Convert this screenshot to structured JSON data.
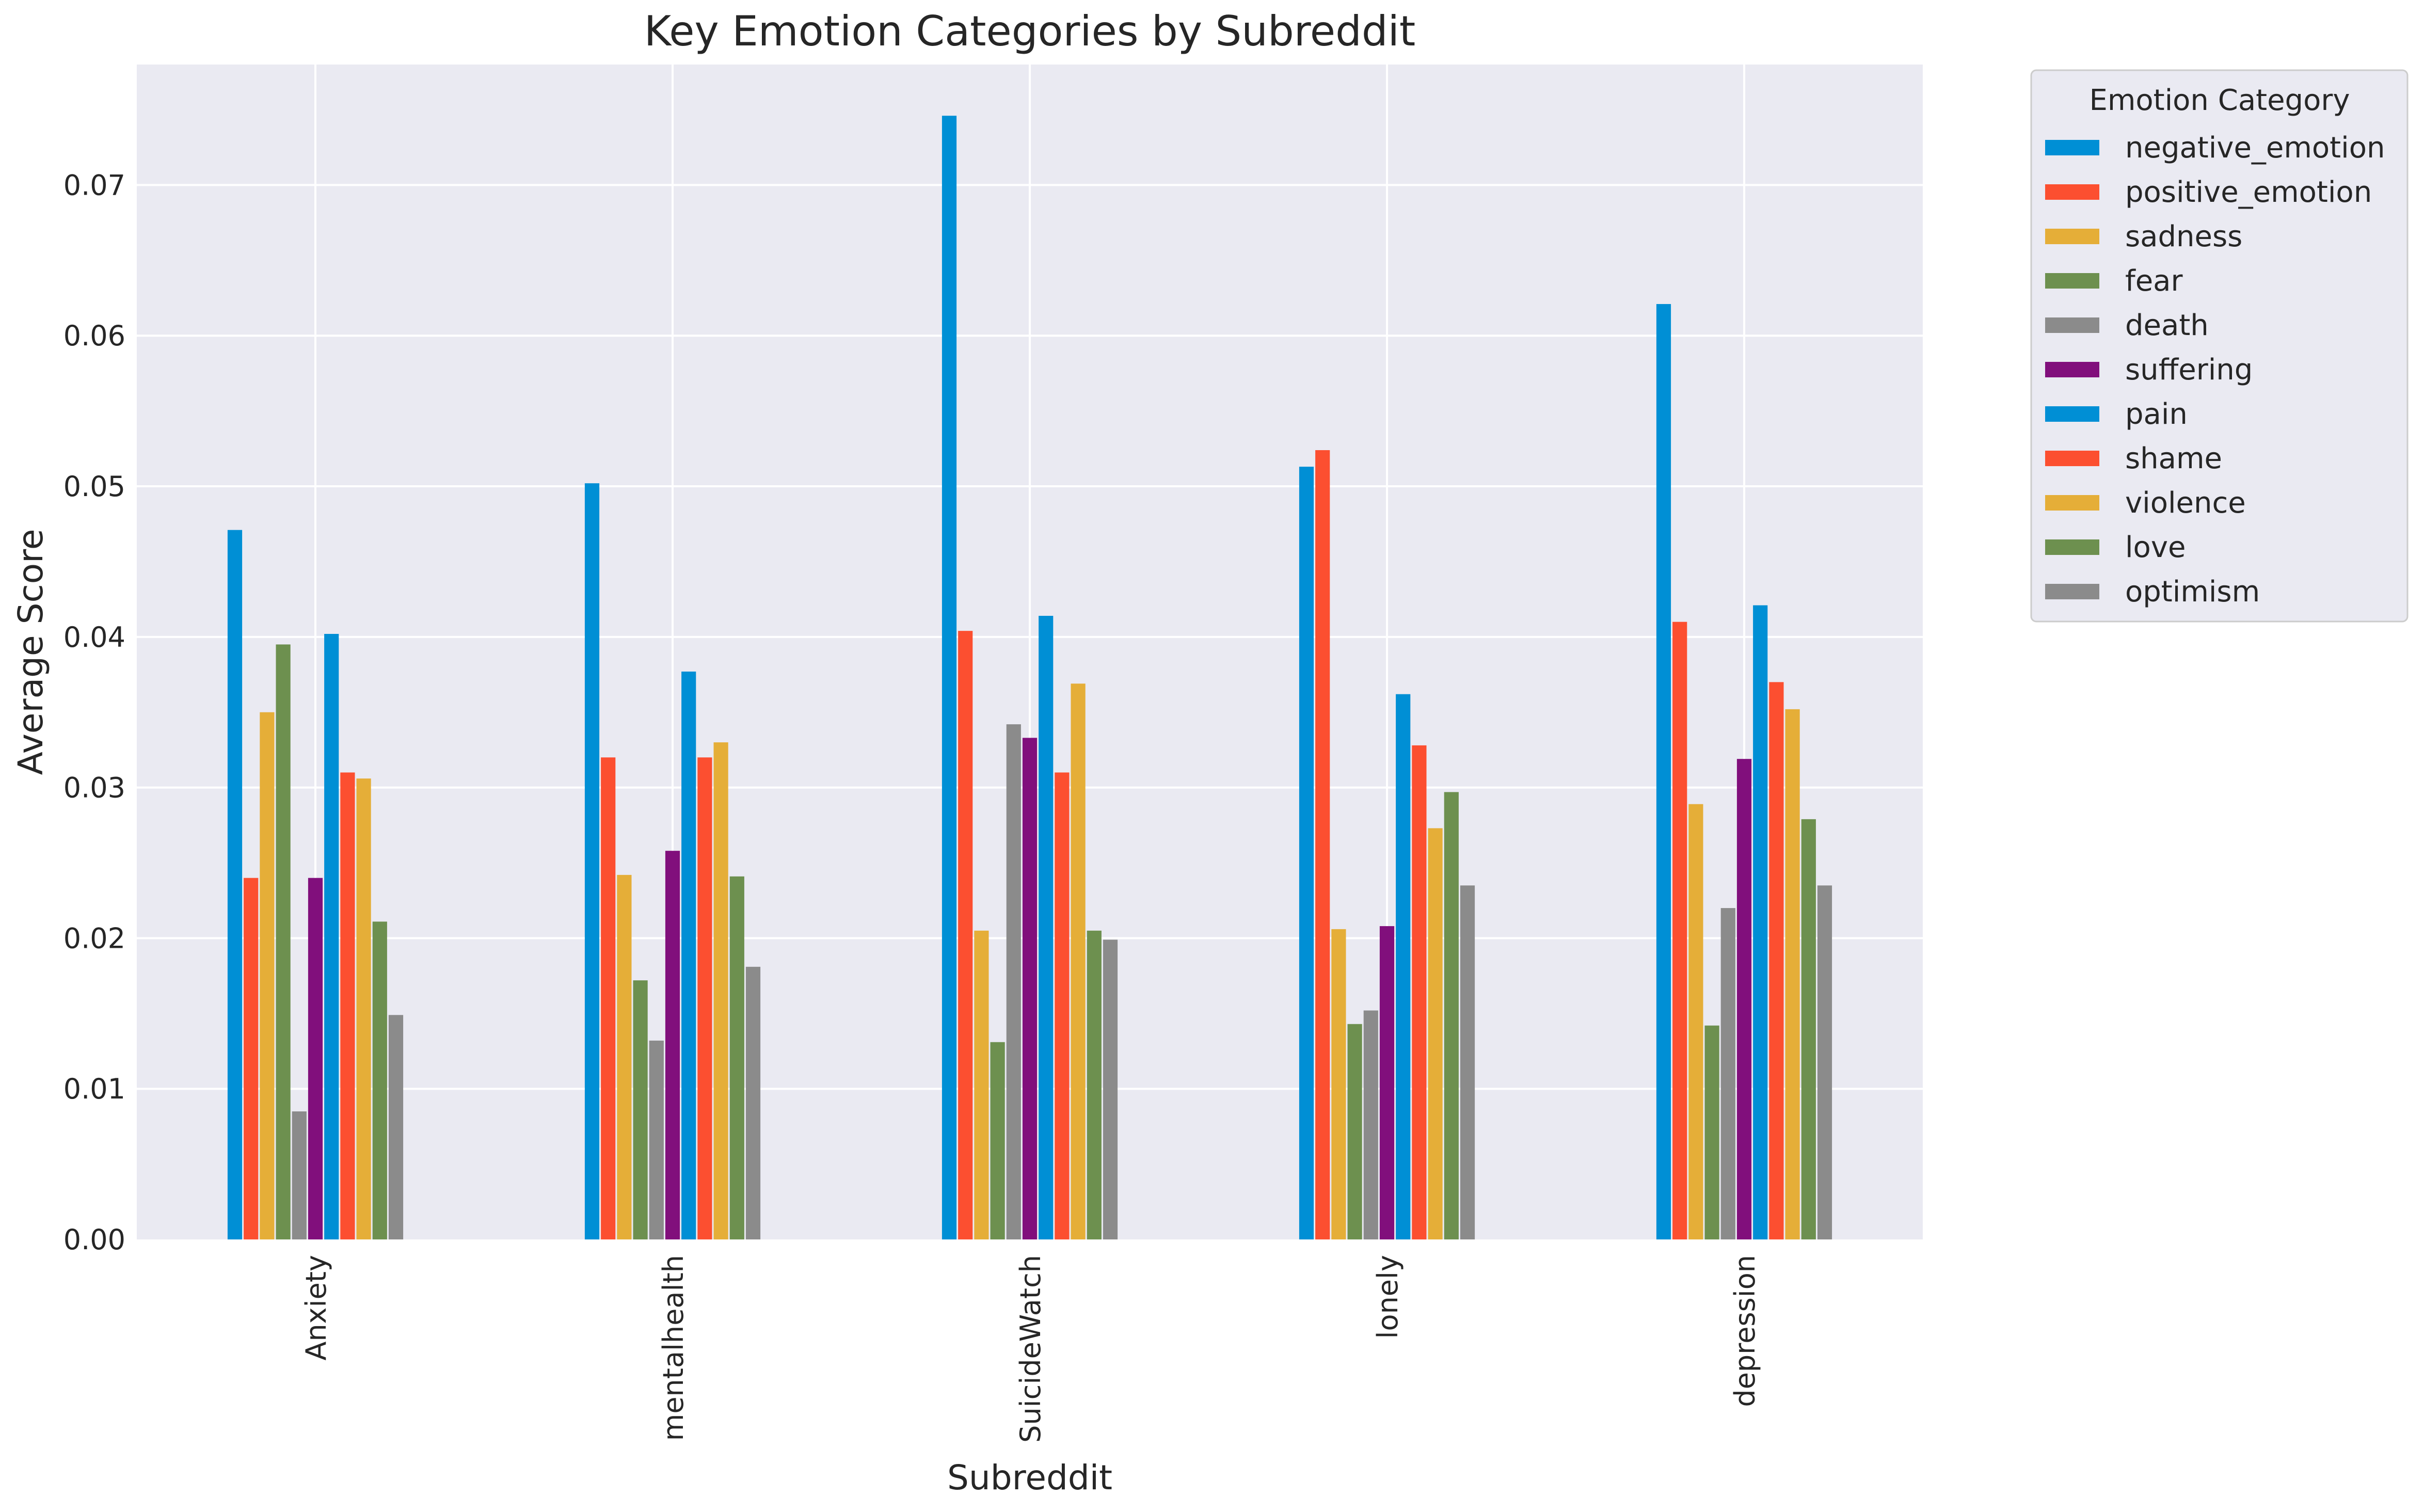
{
  "chart_data": {
    "type": "bar",
    "title": "Key Emotion Categories by Subreddit",
    "xlabel": "Subreddit",
    "ylabel": "Average Score",
    "categories": [
      "Anxiety",
      "mentalhealth",
      "SuicideWatch",
      "lonely",
      "depression"
    ],
    "ylim": [
      0,
      0.078
    ],
    "yticks": [
      "0.00",
      "0.01",
      "0.02",
      "0.03",
      "0.04",
      "0.05",
      "0.06",
      "0.07"
    ],
    "grid": true,
    "legend": {
      "title": "Emotion Category",
      "placement": "outside-top-right"
    },
    "series": [
      {
        "name": "negative_emotion",
        "color": "#008fd5",
        "values": [
          0.0471,
          0.0502,
          0.0746,
          0.0513,
          0.0621
        ]
      },
      {
        "name": "positive_emotion",
        "color": "#fc4f30",
        "values": [
          0.024,
          0.032,
          0.0404,
          0.0524,
          0.041
        ]
      },
      {
        "name": "sadness",
        "color": "#e5ae38",
        "values": [
          0.035,
          0.0242,
          0.0205,
          0.0206,
          0.0289
        ]
      },
      {
        "name": "fear",
        "color": "#6d904f",
        "values": [
          0.0395,
          0.0172,
          0.0131,
          0.0143,
          0.0142
        ]
      },
      {
        "name": "death",
        "color": "#8b8b8b",
        "values": [
          0.0085,
          0.0132,
          0.0342,
          0.0152,
          0.022
        ]
      },
      {
        "name": "suffering",
        "color": "#810f7c",
        "values": [
          0.024,
          0.0258,
          0.0333,
          0.0208,
          0.0319
        ]
      },
      {
        "name": "pain",
        "color": "#008fd5",
        "values": [
          0.0402,
          0.0377,
          0.0414,
          0.0362,
          0.0421
        ]
      },
      {
        "name": "shame",
        "color": "#fc4f30",
        "values": [
          0.031,
          0.032,
          0.031,
          0.0328,
          0.037
        ]
      },
      {
        "name": "violence",
        "color": "#e5ae38",
        "values": [
          0.0306,
          0.033,
          0.0369,
          0.0273,
          0.0352
        ]
      },
      {
        "name": "love",
        "color": "#6d904f",
        "values": [
          0.0211,
          0.0241,
          0.0205,
          0.0297,
          0.0279
        ]
      },
      {
        "name": "optimism",
        "color": "#8b8b8b",
        "values": [
          0.0149,
          0.0181,
          0.0199,
          0.0235,
          0.0235
        ]
      }
    ]
  },
  "colors": {
    "plot_background": "#eaeaf2",
    "grid": "#ffffff",
    "text": "#262626"
  }
}
